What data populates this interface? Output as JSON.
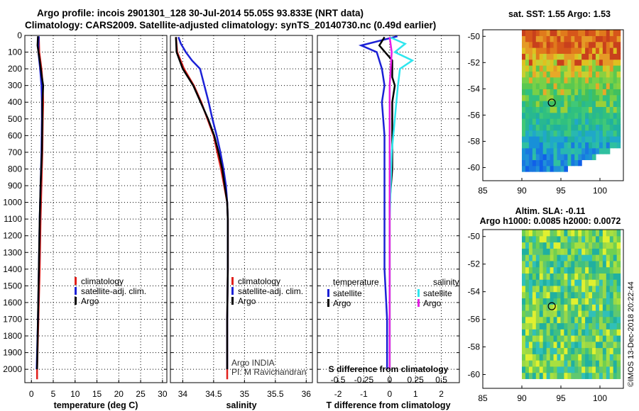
{
  "title": {
    "line1": "Argo profile: incois 2901301_128 30-Jul-2014 55.05S 93.833E (NRT data)",
    "line2": "Climatology: CARS2009. Satellite-adjusted climatology: synTS_20140730.nc (0.49d earlier)"
  },
  "colors": {
    "climatology": "#e0201b",
    "satellite": "#1c21d6",
    "argo": "#000000",
    "sal_satellite": "#2fe6ee",
    "sal_argo": "#e61ee6"
  },
  "chart_data": [
    {
      "type": "line",
      "id": "temperature",
      "xlabel": "temperature (deg C)",
      "ylabel": "",
      "xlim": [
        -1.5,
        31
      ],
      "ylim": [
        2080,
        0
      ],
      "xticks": [
        0,
        5,
        10,
        15,
        20,
        25,
        30
      ],
      "yticks": [
        0,
        100,
        200,
        300,
        400,
        500,
        600,
        700,
        800,
        900,
        1000,
        1100,
        1200,
        1300,
        1400,
        1500,
        1600,
        1700,
        1800,
        1900,
        2000
      ],
      "legend": [
        "climatology",
        "satellite-adj. clim.",
        "Argo"
      ],
      "series": [
        {
          "name": "climatology",
          "color": "#e0201b",
          "points": [
            [
              1.7,
              10
            ],
            [
              1.8,
              100
            ],
            [
              2.3,
              200
            ],
            [
              2.6,
              300
            ],
            [
              2.7,
              400
            ],
            [
              2.6,
              500
            ],
            [
              2.5,
              700
            ],
            [
              2.3,
              900
            ],
            [
              2.1,
              1100
            ],
            [
              1.9,
              1400
            ],
            [
              1.6,
              1700
            ],
            [
              1.3,
              2000
            ],
            [
              1.3,
              2060
            ]
          ]
        },
        {
          "name": "satellite-adj. clim.",
          "color": "#1c21d6",
          "points": [
            [
              1.7,
              5
            ],
            [
              1.6,
              50
            ],
            [
              1.6,
              100
            ],
            [
              2.0,
              200
            ],
            [
              2.3,
              300
            ],
            [
              2.4,
              400
            ],
            [
              2.4,
              500
            ],
            [
              2.3,
              700
            ],
            [
              2.1,
              900
            ],
            [
              1.9,
              1100
            ],
            [
              1.7,
              1400
            ],
            [
              1.5,
              1700
            ],
            [
              1.2,
              2000
            ]
          ]
        },
        {
          "name": "Argo",
          "color": "#000000",
          "points": [
            [
              1.5,
              5
            ],
            [
              1.4,
              60
            ],
            [
              1.9,
              150
            ],
            [
              2.4,
              250
            ],
            [
              2.7,
              300
            ],
            [
              2.5,
              400
            ],
            [
              2.5,
              500
            ],
            [
              2.4,
              700
            ],
            [
              2.1,
              900
            ],
            [
              1.9,
              1100
            ],
            [
              1.7,
              1400
            ],
            [
              1.5,
              1700
            ],
            [
              1.3,
              2000
            ]
          ]
        }
      ]
    },
    {
      "type": "line",
      "id": "salinity",
      "xlabel": "salinity",
      "ylabel": "",
      "xlim": [
        33.8,
        36.1
      ],
      "ylim": [
        2080,
        0
      ],
      "xticks": [
        34,
        34.5,
        35,
        35.5,
        36
      ],
      "legend": [
        "climatology",
        "satellite-adj. clim.",
        "Argo"
      ],
      "annotation": [
        "Argo INDIA",
        "PI: M Ravichandran"
      ],
      "series": [
        {
          "name": "climatology",
          "color": "#e0201b",
          "points": [
            [
              33.89,
              10
            ],
            [
              33.91,
              100
            ],
            [
              34.02,
              200
            ],
            [
              34.18,
              300
            ],
            [
              34.3,
              400
            ],
            [
              34.4,
              500
            ],
            [
              34.5,
              600
            ],
            [
              34.56,
              700
            ],
            [
              34.62,
              800
            ],
            [
              34.67,
              900
            ],
            [
              34.72,
              1000
            ],
            [
              34.73,
              1100
            ],
            [
              34.73,
              1400
            ],
            [
              34.72,
              1700
            ],
            [
              34.72,
              2060
            ]
          ]
        },
        {
          "name": "satellite-adj. clim.",
          "color": "#1c21d6",
          "points": [
            [
              33.93,
              10
            ],
            [
              33.97,
              50
            ],
            [
              34.05,
              100
            ],
            [
              34.15,
              150
            ],
            [
              34.28,
              200
            ],
            [
              34.35,
              300
            ],
            [
              34.42,
              400
            ],
            [
              34.48,
              500
            ],
            [
              34.55,
              600
            ],
            [
              34.61,
              700
            ],
            [
              34.66,
              800
            ],
            [
              34.7,
              900
            ],
            [
              34.72,
              1000
            ],
            [
              34.73,
              1100
            ],
            [
              34.73,
              1400
            ],
            [
              34.72,
              1700
            ],
            [
              34.72,
              2000
            ]
          ]
        },
        {
          "name": "Argo",
          "color": "#000000",
          "points": [
            [
              33.89,
              10
            ],
            [
              33.9,
              100
            ],
            [
              34.0,
              200
            ],
            [
              34.17,
              300
            ],
            [
              34.29,
              400
            ],
            [
              34.41,
              500
            ],
            [
              34.51,
              600
            ],
            [
              34.58,
              700
            ],
            [
              34.64,
              800
            ],
            [
              34.68,
              900
            ],
            [
              34.72,
              1000
            ],
            [
              34.73,
              1100
            ],
            [
              34.73,
              1400
            ],
            [
              34.72,
              1700
            ],
            [
              34.72,
              2000
            ]
          ]
        }
      ]
    },
    {
      "type": "line",
      "id": "differences",
      "xlabel": "T difference from climatology",
      "xlabel2": "S difference from climatology",
      "xlim": [
        -2.8,
        2.7
      ],
      "ylim": [
        2080,
        0
      ],
      "xticks": [
        -2,
        -1,
        0,
        1,
        2
      ],
      "xticks_s": [
        -0.5,
        -0.25,
        0,
        0.25,
        0.5
      ],
      "legend_left_title": "temperature",
      "legend_right_title": "salinity",
      "legend_left": [
        "satellite",
        "Argo"
      ],
      "legend_right": [
        "satellite",
        "Argo"
      ],
      "series": [
        {
          "name": "T satellite",
          "color": "#1c21d6",
          "points": [
            [
              0.3,
              5
            ],
            [
              -1.1,
              60
            ],
            [
              -0.5,
              100
            ],
            [
              -0.3,
              200
            ],
            [
              -0.2,
              300
            ],
            [
              -0.3,
              400
            ],
            [
              -0.2,
              600
            ],
            [
              -0.2,
              800
            ],
            [
              -0.2,
              1000
            ],
            [
              -0.2,
              1400
            ],
            [
              -0.1,
              1700
            ],
            [
              -0.1,
              2000
            ]
          ]
        },
        {
          "name": "T Argo",
          "color": "#000000",
          "points": [
            [
              -0.2,
              10
            ],
            [
              -0.4,
              60
            ],
            [
              0.1,
              150
            ],
            [
              0.1,
              250
            ],
            [
              0.2,
              300
            ],
            [
              0.1,
              400
            ],
            [
              0.1,
              600
            ],
            [
              0.1,
              800
            ],
            [
              0.0,
              1000
            ],
            [
              0.0,
              1400
            ],
            [
              0.0,
              1700
            ],
            [
              0.0,
              2000
            ]
          ]
        },
        {
          "name": "S satellite",
          "color": "#2fe6ee",
          "points": [
            [
              0.0,
              10
            ],
            [
              0.15,
              50
            ],
            [
              0.05,
              100
            ],
            [
              0.22,
              150
            ],
            [
              0.1,
              200
            ],
            [
              0.08,
              300
            ],
            [
              0.05,
              500
            ],
            [
              0.02,
              700
            ],
            [
              0.01,
              900
            ],
            [
              0.0,
              1100
            ],
            [
              0.0,
              1500
            ],
            [
              0.0,
              2000
            ]
          ]
        },
        {
          "name": "S Argo",
          "color": "#e61ee6",
          "points": [
            [
              0.0,
              10
            ],
            [
              0.02,
              100
            ],
            [
              0.01,
              200
            ],
            [
              0.0,
              300
            ],
            [
              0.0,
              500
            ],
            [
              0.0,
              700
            ],
            [
              0.0,
              1000
            ],
            [
              0.0,
              1500
            ],
            [
              0.0,
              2000
            ]
          ]
        }
      ]
    },
    {
      "type": "heatmap",
      "id": "sst_map",
      "title": "sat. SST: 1.55 Argo: 1.53",
      "xlim": [
        85,
        103
      ],
      "ylim": [
        -61,
        -49.5
      ],
      "xticks": [
        85,
        90,
        95,
        100
      ],
      "yticks": [
        -50,
        -52,
        -54,
        -56,
        -58,
        -60
      ],
      "marker": {
        "lon": 93.833,
        "lat": -55.05
      }
    },
    {
      "type": "heatmap",
      "id": "sla_map",
      "title": "Altim. SLA: -0.11",
      "subtitle": "Argo h1000: 0.0085 h2000: 0.0072",
      "xlim": [
        85,
        103
      ],
      "ylim": [
        -61,
        -49.5
      ],
      "xticks": [
        85,
        90,
        95,
        100
      ],
      "yticks": [
        -50,
        -52,
        -54,
        -56,
        -58,
        -60
      ],
      "marker": {
        "lon": 93.833,
        "lat": -55.05
      }
    }
  ],
  "watermark": "©IMOS 13-Dec-2018 20:22:44"
}
